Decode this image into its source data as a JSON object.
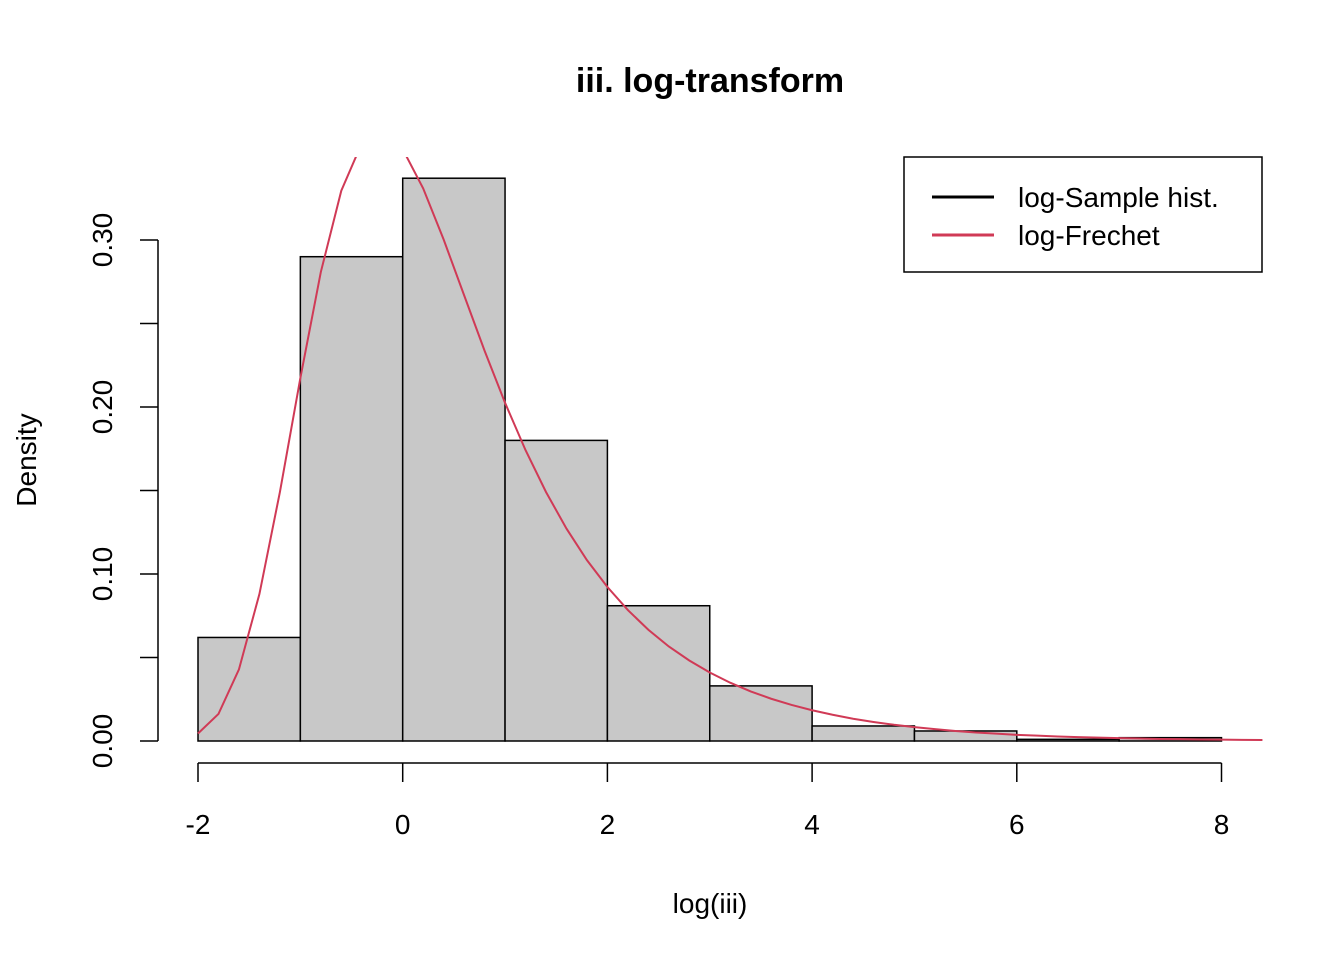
{
  "chart_data": {
    "type": "histogram",
    "title": "iii. log-transform",
    "xlabel": "log(iii)",
    "ylabel": "Density",
    "xlim": [
      -2,
      8.4
    ],
    "ylim": [
      0,
      0.35
    ],
    "x_ticks": [
      -2,
      0,
      2,
      4,
      6,
      8
    ],
    "x_tick_labels": [
      "-2",
      "0",
      "2",
      "4",
      "6",
      "8"
    ],
    "y_ticks": [
      0.0,
      0.05,
      0.1,
      0.15,
      0.2,
      0.25,
      0.3
    ],
    "y_tick_labels": [
      "0.00",
      "",
      "0.10",
      "",
      "0.20",
      "",
      "0.30"
    ],
    "bins": [
      {
        "x0": -2,
        "x1": -1,
        "density": 0.062
      },
      {
        "x0": -1,
        "x1": 0,
        "density": 0.29
      },
      {
        "x0": 0,
        "x1": 1,
        "density": 0.337
      },
      {
        "x0": 1,
        "x1": 2,
        "density": 0.18
      },
      {
        "x0": 2,
        "x1": 3,
        "density": 0.081
      },
      {
        "x0": 3,
        "x1": 4,
        "density": 0.033
      },
      {
        "x0": 4,
        "x1": 5,
        "density": 0.009
      },
      {
        "x0": 5,
        "x1": 6,
        "density": 0.006
      },
      {
        "x0": 6,
        "x1": 7,
        "density": 0.001
      },
      {
        "x0": 7,
        "x1": 8,
        "density": 0.002
      }
    ],
    "bar_fill": "#c8c8c8",
    "curve": {
      "name": "log-Frechet",
      "color": "#d03a56",
      "x": [
        -2.0,
        -1.8,
        -1.6,
        -1.4,
        -1.2,
        -1.0,
        -0.8,
        -0.6,
        -0.4,
        -0.2,
        0.0,
        0.2,
        0.4,
        0.6,
        0.8,
        1.0,
        1.2,
        1.4,
        1.6,
        1.8,
        2.0,
        2.2,
        2.4,
        2.6,
        2.8,
        3.0,
        3.2,
        3.4,
        3.6,
        3.8,
        4.0,
        4.2,
        4.4,
        4.6,
        4.8,
        5.0,
        5.2,
        5.4,
        5.6,
        5.8,
        6.0,
        6.2,
        6.4,
        6.6,
        6.8,
        7.0,
        7.2,
        7.4,
        7.6,
        7.8,
        8.0,
        8.2,
        8.4
      ],
      "y": [
        0.0045,
        0.0162,
        0.0429,
        0.088,
        0.149,
        0.2173,
        0.2808,
        0.3295,
        0.3579,
        0.3651,
        0.3544,
        0.3309,
        0.3003,
        0.2669,
        0.2337,
        0.2025,
        0.1742,
        0.1491,
        0.1272,
        0.1083,
        0.0922,
        0.0784,
        0.0666,
        0.0566,
        0.0482,
        0.041,
        0.0349,
        0.0297,
        0.0253,
        0.0216,
        0.0184,
        0.0157,
        0.0133,
        0.0114,
        0.0097,
        0.0083,
        0.0071,
        0.006,
        0.0051,
        0.0044,
        0.0037,
        0.0032,
        0.0027,
        0.0023,
        0.002,
        0.0017,
        0.0015,
        0.0012,
        0.0011,
        0.0009,
        0.0008,
        0.0007,
        0.0006
      ]
    },
    "legend": {
      "position": "top-right",
      "entries": [
        {
          "label": "log-Sample hist.",
          "color": "#000000"
        },
        {
          "label": "log-Frechet",
          "color": "#d03a56"
        }
      ]
    }
  }
}
